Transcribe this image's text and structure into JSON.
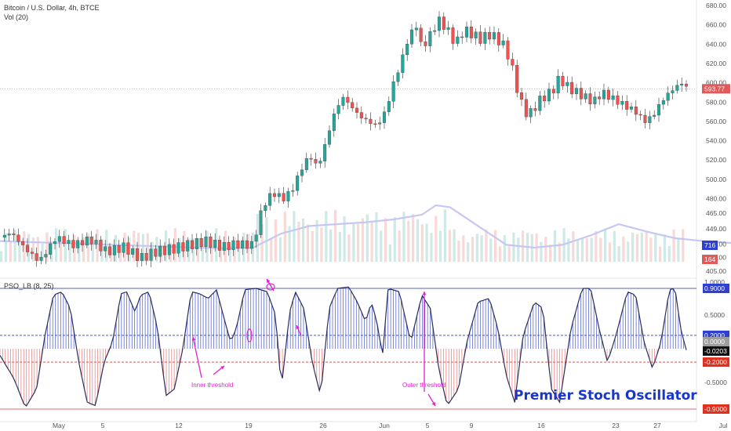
{
  "header": {
    "symbol_line": "Bitcoin / U.S. Dollar, 4h, BTCE",
    "volume_indicator": "Vol (20)",
    "oscillator_name": "PSO_LB (8, 25)"
  },
  "annotations": {
    "inner_threshold": "Inner threshold",
    "outer_threshold": "Outer threshold",
    "brand": "Premier Stoch Oscillator"
  },
  "colors": {
    "candle_up": "#26a69a",
    "candle_down": "#ef5350",
    "candle_wick": "#333333",
    "volume_ma": "#c5c8f3",
    "osc_line": "#2a2e5a",
    "osc_pos_hist": "#3f51d8",
    "osc_neg_hist": "#e57373",
    "outer_line": "#1f2f9a",
    "inner_pos": "#2a3ad8",
    "inner_neg": "#d83a3a",
    "annotation": "#e020d0",
    "brand": "#1a37c9"
  },
  "chart_data": [
    {
      "type": "candlestick",
      "title": "Bitcoin / U.S. Dollar, 4h, BTCE",
      "price_axis_ticks": [
        680.0,
        660.0,
        640.0,
        620.0,
        600.0,
        580.0,
        560.0,
        540.0,
        520.0,
        500.0,
        480.0,
        465.0,
        449.0,
        433.0,
        419.0,
        405.0
      ],
      "price_axis_labels": [
        "680.00",
        "660.00",
        "640.00",
        "620.00",
        "600.00",
        "580.00",
        "560.00",
        "540.00",
        "520.00",
        "500.00",
        "480.00",
        "465.00",
        "449.00",
        "433.00",
        "419.00",
        "405.00"
      ],
      "ylim": [
        405,
        680
      ],
      "last_price_label": "593.77",
      "last_price": 593.77,
      "close_path": [
        [
          0,
          440
        ],
        [
          8,
          445
        ],
        [
          18,
          428
        ],
        [
          28,
          415
        ],
        [
          40,
          440
        ],
        [
          52,
          432
        ],
        [
          64,
          438
        ],
        [
          76,
          425
        ],
        [
          88,
          430
        ],
        [
          100,
          418
        ],
        [
          110,
          425
        ],
        [
          122,
          428
        ],
        [
          134,
          432
        ],
        [
          146,
          436
        ],
        [
          158,
          430
        ],
        [
          168,
          433
        ],
        [
          180,
          432
        ],
        [
          184,
          458
        ],
        [
          188,
          475
        ],
        [
          194,
          486
        ],
        [
          202,
          480
        ],
        [
          208,
          490
        ],
        [
          214,
          510
        ],
        [
          220,
          525
        ],
        [
          226,
          512
        ],
        [
          232,
          540
        ],
        [
          238,
          570
        ],
        [
          244,
          585
        ],
        [
          250,
          575
        ],
        [
          256,
          565
        ],
        [
          262,
          560
        ],
        [
          268,
          555
        ],
        [
          274,
          570
        ],
        [
          280,
          600
        ],
        [
          286,
          625
        ],
        [
          290,
          645
        ],
        [
          296,
          660
        ],
        [
          300,
          635
        ],
        [
          306,
          650
        ],
        [
          312,
          665
        ],
        [
          318,
          655
        ],
        [
          324,
          640
        ],
        [
          330,
          655
        ],
        [
          336,
          650
        ],
        [
          342,
          645
        ],
        [
          348,
          650
        ],
        [
          354,
          645
        ],
        [
          360,
          635
        ],
        [
          366,
          605
        ],
        [
          370,
          580
        ],
        [
          376,
          565
        ],
        [
          380,
          575
        ],
        [
          386,
          585
        ],
        [
          392,
          590
        ],
        [
          398,
          605
        ],
        [
          404,
          595
        ],
        [
          410,
          590
        ],
        [
          416,
          585
        ],
        [
          422,
          580
        ],
        [
          428,
          590
        ],
        [
          434,
          585
        ],
        [
          440,
          580
        ],
        [
          446,
          575
        ],
        [
          452,
          570
        ],
        [
          458,
          560
        ],
        [
          464,
          565
        ],
        [
          470,
          580
        ],
        [
          476,
          590
        ],
        [
          480,
          595
        ],
        [
          484,
          600
        ],
        [
          488,
          596
        ]
      ],
      "volume_ma_path": [
        [
          0,
          0.22
        ],
        [
          40,
          0.2
        ],
        [
          80,
          0.18
        ],
        [
          120,
          0.16
        ],
        [
          160,
          0.14
        ],
        [
          180,
          0.15
        ],
        [
          200,
          0.3
        ],
        [
          220,
          0.38
        ],
        [
          240,
          0.4
        ],
        [
          260,
          0.42
        ],
        [
          280,
          0.45
        ],
        [
          300,
          0.5
        ],
        [
          310,
          0.6
        ],
        [
          320,
          0.58
        ],
        [
          340,
          0.38
        ],
        [
          360,
          0.18
        ],
        [
          380,
          0.15
        ],
        [
          400,
          0.18
        ],
        [
          420,
          0.28
        ],
        [
          440,
          0.4
        ],
        [
          460,
          0.32
        ],
        [
          480,
          0.25
        ],
        [
          500,
          0.22
        ],
        [
          520,
          0.2
        ]
      ],
      "volume_readouts": [
        {
          "label": "716",
          "value": 716
        },
        {
          "label": "164",
          "value": 164
        }
      ],
      "x_tick_labels": [
        "May",
        "5",
        "12",
        "19",
        "26",
        "Jun",
        "5",
        "9",
        "16",
        "23",
        "27",
        "Jul"
      ]
    },
    {
      "type": "oscillator",
      "title": "PSO_LB (8, 25)",
      "ylim": [
        -1.0,
        1.0
      ],
      "scale_labels": [
        {
          "label": "1.0000",
          "value": 1.0,
          "style": "plain"
        },
        {
          "label": "0.9000",
          "value": 0.9,
          "style": "blue"
        },
        {
          "label": "0.5000",
          "value": 0.5,
          "style": "plain"
        },
        {
          "label": "0.2000",
          "value": 0.2,
          "style": "blue"
        },
        {
          "label": "0.0000",
          "value": 0.0,
          "style": "grey"
        },
        {
          "label": "-0.0203",
          "value": -0.0203,
          "style": "dark"
        },
        {
          "label": "-0.2000",
          "value": -0.2,
          "style": "red"
        },
        {
          "label": "-0.5000",
          "value": -0.5,
          "style": "plain"
        },
        {
          "label": "-0.9000",
          "value": -0.9,
          "style": "red"
        }
      ],
      "current_value": -0.0203,
      "thresholds": {
        "outer": [
          0.9,
          -0.9
        ],
        "inner": [
          0.2,
          -0.2
        ]
      },
      "keypoints": [
        [
          0,
          -0.1
        ],
        [
          10,
          -0.45
        ],
        [
          18,
          -0.88
        ],
        [
          26,
          -0.6
        ],
        [
          32,
          0.2
        ],
        [
          38,
          0.8
        ],
        [
          44,
          0.85
        ],
        [
          50,
          0.6
        ],
        [
          56,
          -0.2
        ],
        [
          62,
          -0.8
        ],
        [
          68,
          -0.85
        ],
        [
          74,
          -0.2
        ],
        [
          80,
          0.1
        ],
        [
          86,
          0.82
        ],
        [
          90,
          0.85
        ],
        [
          96,
          0.55
        ],
        [
          100,
          0.8
        ],
        [
          106,
          0.85
        ],
        [
          112,
          0.3
        ],
        [
          118,
          -0.7
        ],
        [
          124,
          -0.6
        ],
        [
          130,
          0.0
        ],
        [
          136,
          0.85
        ],
        [
          142,
          0.82
        ],
        [
          148,
          0.75
        ],
        [
          154,
          0.88
        ],
        [
          160,
          0.4
        ],
        [
          164,
          0.1
        ],
        [
          168,
          0.3
        ],
        [
          174,
          0.88
        ],
        [
          182,
          0.9
        ],
        [
          190,
          0.85
        ],
        [
          196,
          0.5
        ],
        [
          200,
          -0.6
        ],
        [
          206,
          0.55
        ],
        [
          210,
          0.85
        ],
        [
          216,
          0.6
        ],
        [
          222,
          -0.2
        ],
        [
          228,
          -0.7
        ],
        [
          234,
          0.6
        ],
        [
          240,
          0.9
        ],
        [
          248,
          0.92
        ],
        [
          254,
          0.7
        ],
        [
          260,
          0.4
        ],
        [
          264,
          0.7
        ],
        [
          268,
          0.4
        ],
        [
          272,
          -0.1
        ],
        [
          276,
          0.9
        ],
        [
          284,
          0.85
        ],
        [
          292,
          0.1
        ],
        [
          300,
          0.8
        ],
        [
          306,
          0.6
        ],
        [
          312,
          -0.3
        ],
        [
          318,
          -0.85
        ],
        [
          326,
          -0.6
        ],
        [
          332,
          0.1
        ],
        [
          340,
          0.7
        ],
        [
          348,
          0.75
        ],
        [
          354,
          0.3
        ],
        [
          360,
          -0.4
        ],
        [
          366,
          -0.8
        ],
        [
          372,
          0.2
        ],
        [
          380,
          0.7
        ],
        [
          386,
          0.6
        ],
        [
          392,
          -0.6
        ],
        [
          398,
          -0.8
        ],
        [
          406,
          0.3
        ],
        [
          414,
          0.9
        ],
        [
          420,
          0.9
        ],
        [
          426,
          0.3
        ],
        [
          432,
          -0.2
        ],
        [
          438,
          0.2
        ],
        [
          446,
          0.85
        ],
        [
          452,
          0.8
        ],
        [
          458,
          0.1
        ],
        [
          464,
          -0.3
        ],
        [
          470,
          0.1
        ],
        [
          476,
          0.88
        ],
        [
          480,
          0.9
        ],
        [
          484,
          0.3
        ],
        [
          488,
          -0.0203
        ]
      ],
      "x_tick_labels": [
        "May",
        "5",
        "12",
        "19",
        "26",
        "Jun",
        "5",
        "9",
        "16",
        "23",
        "27",
        "Jul"
      ]
    }
  ]
}
